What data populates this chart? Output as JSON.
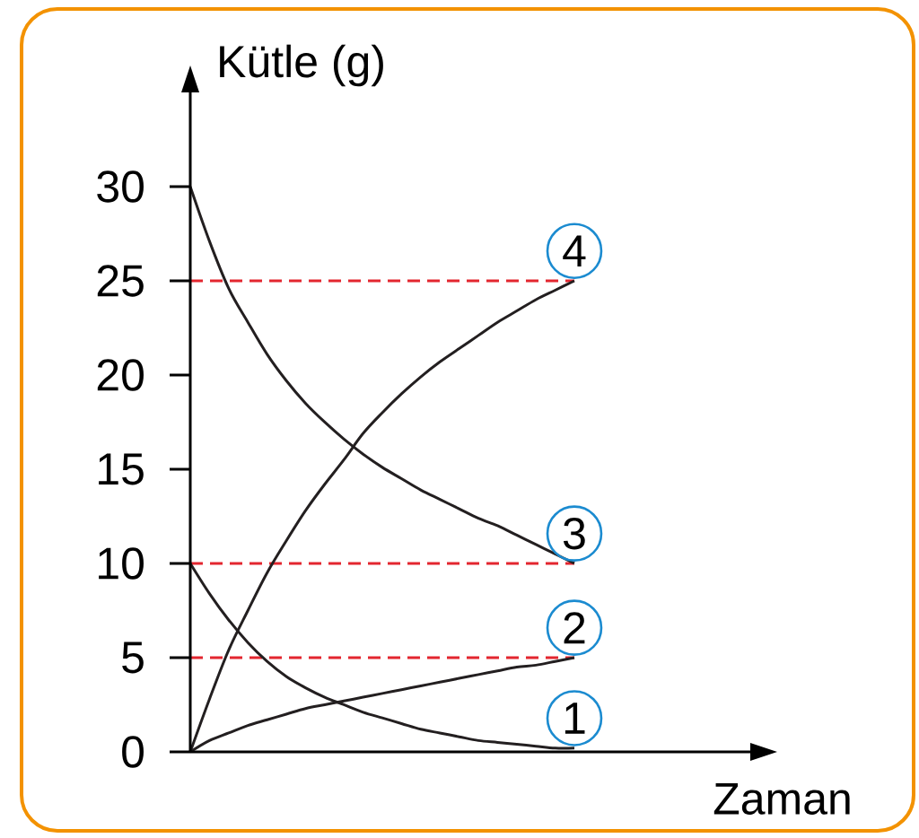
{
  "chart_data": {
    "type": "line",
    "xlabel": "Zaman",
    "ylabel": "Kütle (g)",
    "categories": [
      null,
      null,
      null,
      null,
      null,
      null,
      null,
      null,
      null,
      null,
      null,
      null,
      null,
      null,
      null,
      null,
      null,
      null,
      null,
      null,
      null
    ],
    "series": [
      {
        "name": "1",
        "color": "#231f20",
        "values": [
          10,
          8.4,
          7.0,
          5.8,
          4.8,
          4.0,
          3.4,
          2.9,
          2.5,
          2.1,
          1.8,
          1.5,
          1.2,
          1.0,
          0.8,
          0.6,
          0.5,
          0.4,
          0.3,
          0.2,
          0.2
        ]
      },
      {
        "name": "2",
        "color": "#231f20",
        "values": [
          0,
          0.6,
          1.0,
          1.4,
          1.7,
          2.0,
          2.3,
          2.5,
          2.7,
          2.9,
          3.1,
          3.3,
          3.5,
          3.7,
          3.9,
          4.1,
          4.3,
          4.5,
          4.6,
          4.8,
          5
        ]
      },
      {
        "name": "3",
        "color": "#231f20",
        "values": [
          30,
          27.1,
          24.6,
          22.8,
          21.1,
          19.7,
          18.5,
          17.5,
          16.6,
          15.8,
          15.1,
          14.5,
          13.9,
          13.4,
          12.9,
          12.4,
          12.0,
          11.5,
          11.0,
          10.5,
          10
        ]
      },
      {
        "name": "4",
        "color": "#231f20",
        "values": [
          0,
          2.8,
          5.4,
          7.5,
          9.5,
          11.2,
          12.8,
          14.2,
          15.5,
          16.9,
          18.0,
          19.0,
          19.9,
          20.7,
          21.4,
          22.1,
          22.8,
          23.4,
          24.0,
          24.5,
          25
        ]
      }
    ],
    "ylim": [
      0,
      35
    ],
    "yticks": [
      0,
      5,
      10,
      15,
      20,
      25,
      30
    ],
    "grid": false,
    "legend": false,
    "marker": "none",
    "line_style": "solid",
    "ref_lines": [
      {
        "axis": "y",
        "value": 25,
        "color": "#e3262f",
        "line_style": "dashed"
      },
      {
        "axis": "y",
        "value": 10,
        "color": "#e3262f",
        "line_style": "dashed"
      },
      {
        "axis": "y",
        "value": 5,
        "color": "#e3262f",
        "line_style": "dashed"
      }
    ]
  }
}
